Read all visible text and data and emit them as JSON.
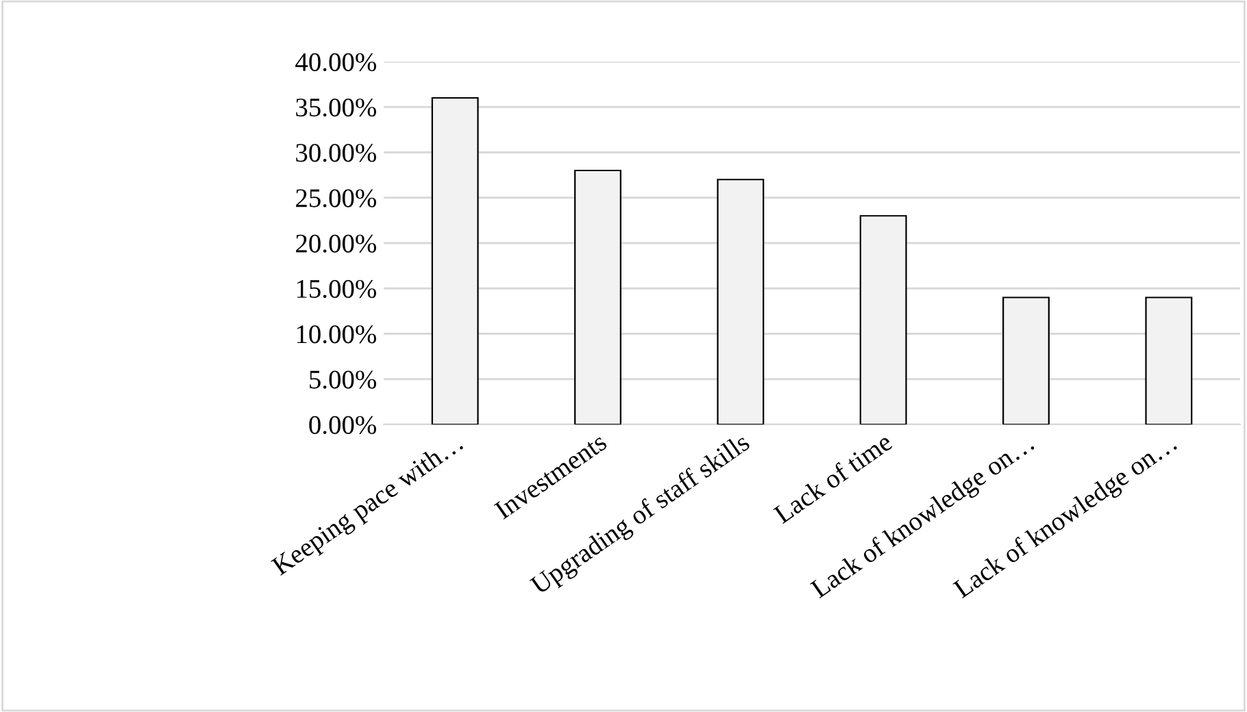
{
  "chart_data": {
    "type": "bar",
    "categories": [
      "Keeping pace with…",
      "Investments",
      "Upgrading of staff skills",
      "Lack of time",
      "Lack of knowledge on…",
      "Lack of knowledge on…"
    ],
    "values": [
      36,
      28,
      27,
      23,
      14,
      14
    ],
    "color": "#f2f2f2",
    "ylim": [
      0,
      40
    ],
    "yticks": [
      {
        "value": 0,
        "label": "0.00%"
      },
      {
        "value": 5,
        "label": "5.00%"
      },
      {
        "value": 10,
        "label": "10.00%"
      },
      {
        "value": 15,
        "label": "15.00%"
      },
      {
        "value": 20,
        "label": "20.00%"
      },
      {
        "value": 25,
        "label": "25.00%"
      },
      {
        "value": 30,
        "label": "30.00%"
      },
      {
        "value": 35,
        "label": "35.00%"
      },
      {
        "value": 40,
        "label": "40.00%"
      }
    ],
    "grid": "y",
    "legend": false
  }
}
